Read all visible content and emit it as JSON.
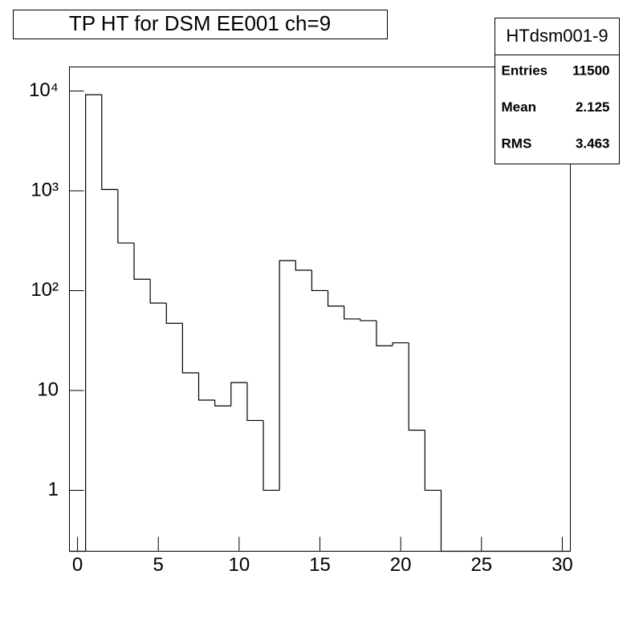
{
  "chart_data": {
    "type": "histogram",
    "title": "TP HT for DSM EE001 ch=9",
    "bins": [
      -0.5,
      0.5,
      1.5,
      2.5,
      3.5,
      4.5,
      5.5,
      6.5,
      7.5,
      8.5,
      9.5,
      10.5,
      11.5,
      12.5,
      13.5,
      14.5,
      15.5,
      16.5,
      17.5,
      18.5,
      19.5,
      20.5,
      21.5,
      22.5,
      23.5,
      24.5,
      25.5,
      26.5,
      27.5,
      28.5,
      29.5,
      30.5
    ],
    "values": [
      0,
      9175,
      1030,
      300,
      130,
      75,
      47,
      15,
      8,
      7,
      12,
      5,
      1,
      200,
      160,
      100,
      70,
      52,
      50,
      28,
      30,
      4,
      1,
      0,
      0,
      0,
      0,
      0,
      0,
      0,
      0
    ],
    "color": "#000000",
    "xlim": [
      -0.5,
      30.5
    ],
    "xticks": [
      0,
      5,
      10,
      15,
      20,
      25,
      30
    ],
    "ylim": [
      0.245,
      17400
    ],
    "log_y": true,
    "yticks": [
      1,
      10,
      {
        "value": 100,
        "label": "10²"
      },
      {
        "value": 1000,
        "label": "10³"
      },
      {
        "value": 10000,
        "label": "10⁴"
      }
    ],
    "stats": {
      "name": "HTdsm001-9",
      "rows": [
        {
          "label": "Entries",
          "value": 11500
        },
        {
          "label": "Mean",
          "value": 2.125
        },
        {
          "label": "RMS",
          "value": 3.463
        }
      ]
    }
  }
}
